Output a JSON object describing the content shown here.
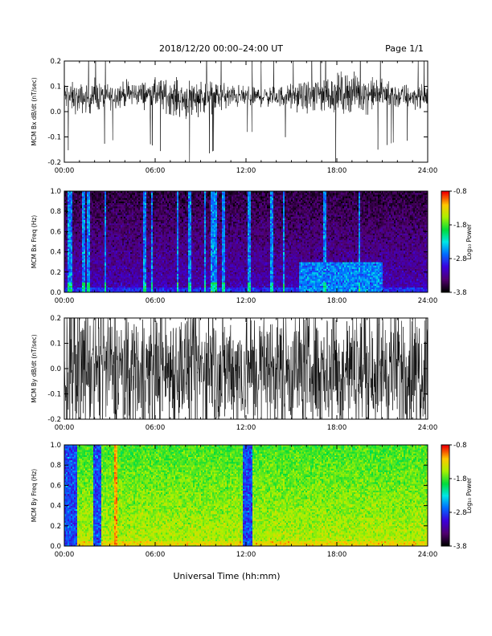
{
  "header": {
    "title": "2018/12/20  00:00–24:00 UT",
    "page": "Page 1/1"
  },
  "xlabel": "Universal Time (hh:mm)",
  "colorbar": {
    "label": "Log₁₀ Power",
    "ticks": [
      "-0.8",
      "-1.8",
      "-2.8",
      "-3.8"
    ],
    "range": [
      -3.8,
      -0.8
    ]
  },
  "chart_data": [
    {
      "type": "line",
      "ylabel": "MCM Bx dB/dt (nT/sec)",
      "xlim": [
        0,
        24
      ],
      "ylim": [
        -0.2,
        0.2
      ],
      "x_ticks": [
        "00:00",
        "06:00",
        "12:00",
        "18:00",
        "24:00"
      ],
      "y_ticks": [
        "0.2",
        "0.1",
        "0.0",
        "-0.1",
        "-0.2"
      ],
      "series": [
        {
          "hours": [
            0,
            1,
            2,
            3,
            4,
            5,
            6,
            7,
            8,
            9,
            10,
            11,
            12,
            13,
            14,
            15,
            16,
            17,
            18,
            19,
            20,
            21,
            22,
            23,
            24
          ],
          "center": [
            0.06,
            0.05,
            0.06,
            0.06,
            0.07,
            0.07,
            0.07,
            0.06,
            0.05,
            0.06,
            0.06,
            0.06,
            0.06,
            0.06,
            0.06,
            0.06,
            0.06,
            0.07,
            0.07,
            0.08,
            0.07,
            0.07,
            0.06,
            0.06,
            0.06
          ],
          "amplitude": [
            0.06,
            0.06,
            0.06,
            0.05,
            0.05,
            0.05,
            0.06,
            0.07,
            0.08,
            0.07,
            0.06,
            0.05,
            0.04,
            0.04,
            0.04,
            0.05,
            0.06,
            0.08,
            0.08,
            0.08,
            0.07,
            0.06,
            0.05,
            0.05,
            0.04
          ]
        }
      ]
    },
    {
      "type": "heatmap",
      "ylabel": "MCM Bx Freq (Hz)",
      "xlim": [
        0,
        24
      ],
      "ylim": [
        0,
        1
      ],
      "x_ticks": [
        "00:00",
        "06:00",
        "12:00",
        "18:00",
        "24:00"
      ],
      "y_ticks": [
        "1.0",
        "0.8",
        "0.6",
        "0.4",
        "0.2",
        "0.0"
      ],
      "background_log_power": -3.6,
      "low_freq_log_power": -2.9,
      "broadband_stripes_hours": [
        0.3,
        0.4,
        1.3,
        1.6,
        2.7,
        5.3,
        5.8,
        7.5,
        8.3,
        9.3,
        9.8,
        10.0,
        10.5,
        12.2,
        13.7,
        14.5,
        17.2,
        19.5
      ],
      "enhancement": {
        "hours": [
          15.5,
          21
        ],
        "freq_max": 0.3,
        "log_power": -2.6
      }
    },
    {
      "type": "line",
      "ylabel": "MCM By dB/dt (nT/sec)",
      "xlim": [
        0,
        24
      ],
      "ylim": [
        -0.2,
        0.2
      ],
      "x_ticks": [
        "00:00",
        "06:00",
        "12:00",
        "18:00",
        "24:00"
      ],
      "y_ticks": [
        "0.2",
        "0.1",
        "0.0",
        "-0.1",
        "-0.2"
      ],
      "series": [
        {
          "hours": [
            0,
            1,
            2,
            3,
            4,
            5,
            6,
            7,
            8,
            9,
            10,
            11,
            12,
            13,
            14,
            15,
            16,
            17,
            18,
            19,
            20,
            21,
            22,
            23,
            24
          ],
          "center": [
            0.0,
            0.0,
            0.0,
            0.0,
            0.0,
            0.0,
            0.0,
            0.0,
            0.0,
            0.0,
            0.0,
            0.0,
            0.0,
            0.0,
            0.0,
            0.0,
            0.0,
            0.0,
            0.0,
            0.0,
            0.0,
            0.0,
            0.0,
            0.0,
            0.0
          ],
          "amplitude": [
            0.22,
            0.25,
            0.25,
            0.25,
            0.25,
            0.25,
            0.25,
            0.25,
            0.25,
            0.25,
            0.25,
            0.25,
            0.25,
            0.25,
            0.25,
            0.25,
            0.25,
            0.25,
            0.25,
            0.25,
            0.25,
            0.25,
            0.25,
            0.25,
            0.25
          ]
        }
      ]
    },
    {
      "type": "heatmap",
      "ylabel": "MCM By Freq (Hz)",
      "xlim": [
        0,
        24
      ],
      "ylim": [
        0,
        1
      ],
      "x_ticks": [
        "00:00",
        "06:00",
        "12:00",
        "18:00",
        "24:00"
      ],
      "y_ticks": [
        "1.0",
        "0.8",
        "0.6",
        "0.4",
        "0.2",
        "0.0"
      ],
      "background_log_power": -1.8,
      "low_freq_log_power": -1.3,
      "quiet_band_hours": [
        [
          0.0,
          0.9
        ],
        [
          1.9,
          2.4
        ],
        [
          11.8,
          12.4
        ]
      ],
      "quiet_log_power": -2.8,
      "red_stripe_hour": 3.4
    }
  ]
}
